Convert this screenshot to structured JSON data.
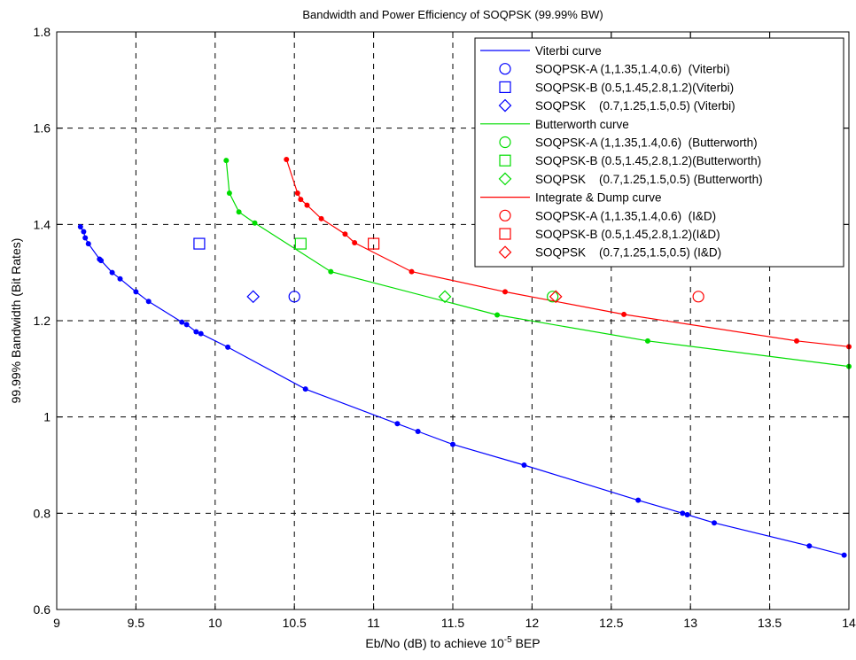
{
  "chart_data": {
    "type": "line",
    "title": "Bandwidth and Power Efficiency of SOQPSK (99.99% BW)",
    "xlabel_main": "Eb/No (dB) to achieve 10",
    "xlabel_sup": "-5",
    "xlabel_tail": " BEP",
    "ylabel": "99.99% Bandwidth (Bit Rates)",
    "xlim": [
      9,
      14
    ],
    "ylim": [
      0.6,
      1.8
    ],
    "x_ticks": [
      "9",
      "9.5",
      "10",
      "10.5",
      "11",
      "11.5",
      "12",
      "12.5",
      "13",
      "13.5",
      "14"
    ],
    "y_ticks": [
      "0.6",
      "0.8",
      "1",
      "1.2",
      "1.4",
      "1.6",
      "1.8"
    ],
    "grid": true,
    "legend_position": "top-right",
    "colors": {
      "viterbi": "#0000ff",
      "butterworth": "#00dd00",
      "integrate_dump": "#ff0000"
    },
    "series": [
      {
        "name": "Viterbi curve",
        "color": "#0000ff",
        "x": [
          9.15,
          9.17,
          9.18,
          9.2,
          9.27,
          9.28,
          9.35,
          9.4,
          9.5,
          9.58,
          9.79,
          9.82,
          9.88,
          9.91,
          10.08,
          10.57,
          11.15,
          11.28,
          11.5,
          11.95,
          12.67,
          12.95,
          12.98,
          13.15,
          13.75,
          13.97
        ],
        "y": [
          1.395,
          1.385,
          1.372,
          1.36,
          1.328,
          1.325,
          1.3,
          1.287,
          1.26,
          1.24,
          1.197,
          1.192,
          1.177,
          1.173,
          1.145,
          1.058,
          0.986,
          0.97,
          0.943,
          0.9,
          0.827,
          0.8,
          0.797,
          0.78,
          0.732,
          0.713
        ]
      },
      {
        "name": "Butterworth curve",
        "color": "#00dd00",
        "x": [
          10.07,
          10.09,
          10.15,
          10.25,
          10.73,
          11.78,
          12.73,
          14.0
        ],
        "y": [
          1.533,
          1.465,
          1.426,
          1.403,
          1.302,
          1.212,
          1.158,
          1.105
        ]
      },
      {
        "name": "Integrate & Dump curve",
        "color": "#ff0000",
        "x": [
          10.45,
          10.52,
          10.54,
          10.58,
          10.67,
          10.82,
          10.88,
          11.24,
          11.83,
          12.58,
          13.67,
          14.0
        ],
        "y": [
          1.535,
          1.465,
          1.452,
          1.44,
          1.412,
          1.38,
          1.362,
          1.302,
          1.26,
          1.213,
          1.158,
          1.146
        ]
      }
    ],
    "markers": [
      {
        "name": "SOQPSK-A (1,1.35,1.4,0.6)  (Viterbi)",
        "shape": "circle",
        "color": "#0000ff",
        "x": 10.5,
        "y": 1.25
      },
      {
        "name": "SOQPSK-B (0.5,1.45,2.8,1.2)(Viterbi)",
        "shape": "square",
        "color": "#0000ff",
        "x": 9.9,
        "y": 1.36
      },
      {
        "name": "SOQPSK    (0.7,1.25,1.5,0.5) (Viterbi)",
        "shape": "diamond",
        "color": "#0000ff",
        "x": 10.24,
        "y": 1.25
      },
      {
        "name": "SOQPSK-A (1,1.35,1.4,0.6)  (Butterworth)",
        "shape": "circle",
        "color": "#00dd00",
        "x": 12.13,
        "y": 1.25
      },
      {
        "name": "SOQPSK-B (0.5,1.45,2.8,1.2)(Butterworth)",
        "shape": "square",
        "color": "#00dd00",
        "x": 10.54,
        "y": 1.36
      },
      {
        "name": "SOQPSK    (0.7,1.25,1.5,0.5) (Butterworth)",
        "shape": "diamond",
        "color": "#00dd00",
        "x": 11.45,
        "y": 1.25
      },
      {
        "name": "SOQPSK-A (1,1.35,1.4,0.6)  (I&D)",
        "shape": "circle",
        "color": "#ff0000",
        "x": 13.05,
        "y": 1.25
      },
      {
        "name": "SOQPSK-B (0.5,1.45,2.8,1.2)(I&D)",
        "shape": "square",
        "color": "#ff0000",
        "x": 11.0,
        "y": 1.36
      },
      {
        "name": "SOQPSK    (0.7,1.25,1.5,0.5) (I&D)",
        "shape": "diamond",
        "color": "#ff0000",
        "x": 12.15,
        "y": 1.25
      }
    ],
    "legend": [
      {
        "label": "Viterbi curve",
        "kind": "line",
        "color": "#0000ff"
      },
      {
        "label": "SOQPSK-A (1,1.35,1.4,0.6)  (Viterbi)",
        "kind": "circle",
        "color": "#0000ff"
      },
      {
        "label": "SOQPSK-B (0.5,1.45,2.8,1.2)(Viterbi)",
        "kind": "square",
        "color": "#0000ff"
      },
      {
        "label": "SOQPSK    (0.7,1.25,1.5,0.5) (Viterbi)",
        "kind": "diamond",
        "color": "#0000ff"
      },
      {
        "label": "Butterworth curve",
        "kind": "line",
        "color": "#00dd00"
      },
      {
        "label": "SOQPSK-A (1,1.35,1.4,0.6)  (Butterworth)",
        "kind": "circle",
        "color": "#00dd00"
      },
      {
        "label": "SOQPSK-B (0.5,1.45,2.8,1.2)(Butterworth)",
        "kind": "square",
        "color": "#00dd00"
      },
      {
        "label": "SOQPSK    (0.7,1.25,1.5,0.5) (Butterworth)",
        "kind": "diamond",
        "color": "#00dd00"
      },
      {
        "label": "Integrate & Dump curve",
        "kind": "line",
        "color": "#ff0000"
      },
      {
        "label": "SOQPSK-A (1,1.35,1.4,0.6)  (I&D)",
        "kind": "circle",
        "color": "#ff0000"
      },
      {
        "label": "SOQPSK-B (0.5,1.45,2.8,1.2)(I&D)",
        "kind": "square",
        "color": "#ff0000"
      },
      {
        "label": "SOQPSK    (0.7,1.25,1.5,0.5) (I&D)",
        "kind": "diamond",
        "color": "#ff0000"
      }
    ]
  }
}
